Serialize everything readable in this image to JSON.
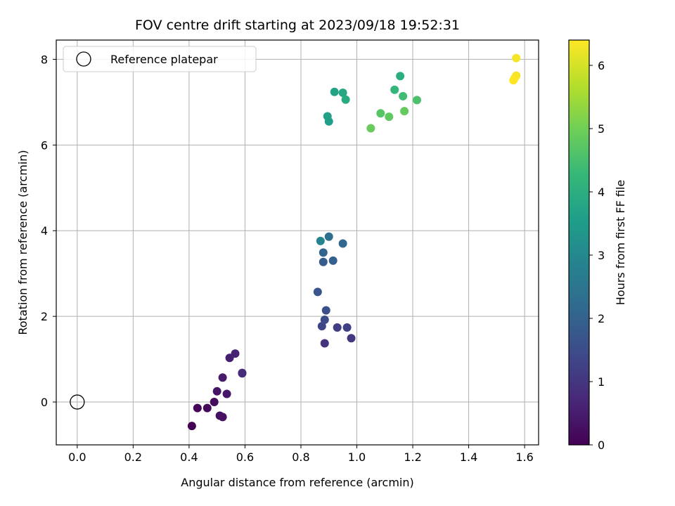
{
  "chart_data": {
    "type": "scatter",
    "title": "FOV centre drift starting at 2023/09/18 19:52:31",
    "xlabel": "Angular distance from reference (arcmin)",
    "ylabel": "Rotation from reference (arcmin)",
    "xlim": [
      -0.075,
      1.65
    ],
    "ylim": [
      -1.0,
      8.45
    ],
    "xticks": [
      0.0,
      0.2,
      0.4,
      0.6,
      0.8,
      1.0,
      1.2,
      1.4,
      1.6
    ],
    "xtick_labels": [
      "0.0",
      "0.2",
      "0.4",
      "0.6",
      "0.8",
      "1.0",
      "1.2",
      "1.4",
      "1.6"
    ],
    "yticks": [
      0,
      2,
      4,
      6,
      8
    ],
    "ytick_labels": [
      "0",
      "2",
      "4",
      "6",
      "8"
    ],
    "grid": true,
    "legend": {
      "position": "top-left",
      "entries": [
        "Reference platepar"
      ]
    },
    "colorbar": {
      "label": "Hours from first FF file",
      "range": [
        0,
        6.4
      ],
      "ticks": [
        0,
        1,
        2,
        3,
        4,
        5,
        6
      ],
      "tick_labels": [
        "0",
        "1",
        "2",
        "3",
        "4",
        "5",
        "6"
      ],
      "colormap": "viridis"
    },
    "reference_point": {
      "name": "Reference platepar",
      "x": 0.0,
      "y": 0.0
    },
    "series": [
      {
        "points": [
          {
            "x": 0.41,
            "y": -0.56,
            "c": 0.0
          },
          {
            "x": 0.43,
            "y": -0.14,
            "c": 0.1
          },
          {
            "x": 0.465,
            "y": -0.14,
            "c": 0.15
          },
          {
            "x": 0.49,
            "y": 0.0,
            "c": 0.2
          },
          {
            "x": 0.51,
            "y": -0.32,
            "c": 0.25
          },
          {
            "x": 0.52,
            "y": -0.35,
            "c": 0.3
          },
          {
            "x": 0.5,
            "y": 0.25,
            "c": 0.35
          },
          {
            "x": 0.535,
            "y": 0.19,
            "c": 0.4
          },
          {
            "x": 0.52,
            "y": 0.57,
            "c": 0.45
          },
          {
            "x": 0.545,
            "y": 1.03,
            "c": 0.55
          },
          {
            "x": 0.565,
            "y": 1.13,
            "c": 0.6
          },
          {
            "x": 0.59,
            "y": 0.67,
            "c": 0.7
          },
          {
            "x": 0.59,
            "y": 0.68,
            "c": 0.8
          },
          {
            "x": 0.885,
            "y": 1.37,
            "c": 0.95
          },
          {
            "x": 0.98,
            "y": 1.49,
            "c": 1.05
          },
          {
            "x": 0.93,
            "y": 1.74,
            "c": 1.15
          },
          {
            "x": 0.965,
            "y": 1.74,
            "c": 1.25
          },
          {
            "x": 0.875,
            "y": 1.77,
            "c": 1.35
          },
          {
            "x": 0.885,
            "y": 1.92,
            "c": 1.45
          },
          {
            "x": 0.89,
            "y": 2.14,
            "c": 1.55
          },
          {
            "x": 0.86,
            "y": 2.57,
            "c": 1.7
          },
          {
            "x": 0.88,
            "y": 3.27,
            "c": 1.85
          },
          {
            "x": 0.915,
            "y": 3.3,
            "c": 1.95
          },
          {
            "x": 0.88,
            "y": 3.49,
            "c": 2.05
          },
          {
            "x": 0.95,
            "y": 3.7,
            "c": 2.15
          },
          {
            "x": 0.9,
            "y": 3.86,
            "c": 2.3
          },
          {
            "x": 0.87,
            "y": 3.76,
            "c": 2.9
          },
          {
            "x": 0.9,
            "y": 6.55,
            "c": 3.55
          },
          {
            "x": 0.895,
            "y": 6.67,
            "c": 3.65
          },
          {
            "x": 0.92,
            "y": 7.24,
            "c": 3.7
          },
          {
            "x": 0.95,
            "y": 7.22,
            "c": 3.8
          },
          {
            "x": 0.96,
            "y": 7.06,
            "c": 3.9
          },
          {
            "x": 1.155,
            "y": 7.61,
            "c": 4.0
          },
          {
            "x": 1.135,
            "y": 7.29,
            "c": 4.2
          },
          {
            "x": 1.165,
            "y": 7.14,
            "c": 4.4
          },
          {
            "x": 1.215,
            "y": 7.05,
            "c": 4.55
          },
          {
            "x": 1.085,
            "y": 6.74,
            "c": 4.7
          },
          {
            "x": 1.115,
            "y": 6.66,
            "c": 4.8
          },
          {
            "x": 1.17,
            "y": 6.79,
            "c": 4.85
          },
          {
            "x": 1.05,
            "y": 6.39,
            "c": 4.9
          },
          {
            "x": 1.57,
            "y": 8.03,
            "c": 6.3
          },
          {
            "x": 1.57,
            "y": 7.62,
            "c": 6.3
          },
          {
            "x": 1.565,
            "y": 7.57,
            "c": 6.35
          },
          {
            "x": 1.56,
            "y": 7.51,
            "c": 6.4
          }
        ]
      }
    ]
  }
}
